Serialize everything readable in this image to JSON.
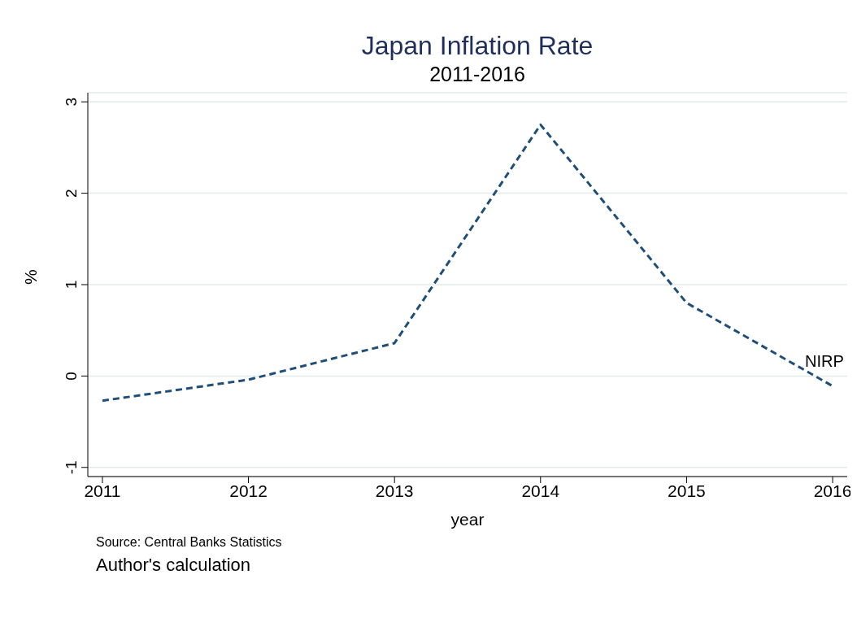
{
  "chart_data": {
    "type": "line",
    "title": "Japan Inflation Rate",
    "subtitle": "2011-2016",
    "xlabel": "year",
    "ylabel": "%",
    "x": [
      2011,
      2012,
      2013,
      2014,
      2015,
      2016
    ],
    "series": [
      {
        "color": "#1f4e79",
        "values": [
          -0.27,
          -0.04,
          0.36,
          2.75,
          0.8,
          -0.11
        ]
      }
    ],
    "xlim": [
      2010.9,
      2016.1
    ],
    "xticks": [
      2011,
      2012,
      2013,
      2014,
      2015,
      2016
    ],
    "ylim": [
      -1.1,
      3.1
    ],
    "yticks": [
      -1,
      0,
      1,
      2,
      3
    ],
    "grid": "y",
    "marker": "none",
    "line_style": "dashed",
    "annotations": [
      "NIRP",
      "Source: Central Banks Statistics",
      "Author's calculation"
    ]
  }
}
